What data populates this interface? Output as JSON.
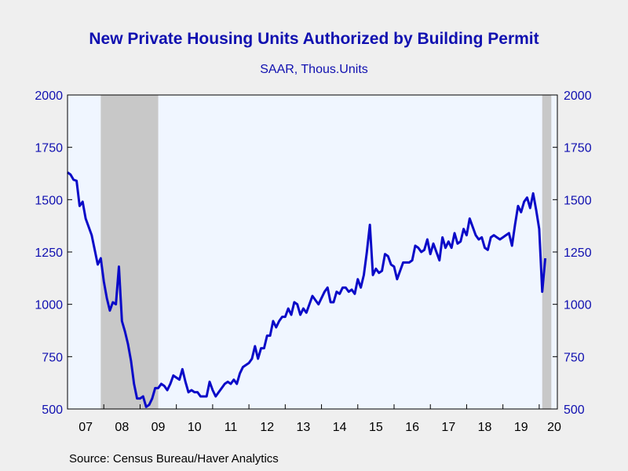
{
  "chart_data": {
    "type": "line",
    "title": "New Private Housing Units Authorized by Building Permit",
    "subtitle": "SAAR, Thous.Units",
    "source": "Source:  Census Bureau/Haver Analytics",
    "ylim": [
      500,
      2000
    ],
    "yticks": [
      500,
      750,
      1000,
      1250,
      1500,
      1750,
      2000
    ],
    "xlim": [
      2007.0,
      2020.5
    ],
    "xticks": [
      {
        "label": "07",
        "year": 2007
      },
      {
        "label": "08",
        "year": 2008
      },
      {
        "label": "09",
        "year": 2009
      },
      {
        "label": "10",
        "year": 2010
      },
      {
        "label": "11",
        "year": 2011
      },
      {
        "label": "12",
        "year": 2012
      },
      {
        "label": "13",
        "year": 2013
      },
      {
        "label": "14",
        "year": 2014
      },
      {
        "label": "15",
        "year": 2015
      },
      {
        "label": "16",
        "year": 2016
      },
      {
        "label": "17",
        "year": 2017
      },
      {
        "label": "18",
        "year": 2018
      },
      {
        "label": "19",
        "year": 2019
      },
      {
        "label": "20",
        "year": 2020
      }
    ],
    "recessions": [
      {
        "start": "2007-12",
        "end": "2009-06"
      },
      {
        "start": "2020-02",
        "end": "2020-04"
      }
    ],
    "grid": false,
    "colors": {
      "line": "#0a0ac8",
      "plot_bg": "#f0f6ff",
      "recession": "#c8c8c8",
      "axis_text": "#1010b0",
      "title": "#1010b0"
    },
    "series": [
      {
        "start": "2007-01",
        "frequency": "monthly",
        "values": [
          1630,
          1620,
          1595,
          1590,
          1470,
          1490,
          1410,
          1370,
          1330,
          1260,
          1190,
          1220,
          1110,
          1030,
          970,
          1010,
          1000,
          1180,
          920,
          870,
          810,
          730,
          620,
          550,
          550,
          560,
          510,
          520,
          550,
          600,
          600,
          620,
          610,
          590,
          620,
          660,
          650,
          640,
          690,
          630,
          580,
          590,
          580,
          580,
          560,
          560,
          560,
          630,
          590,
          560,
          580,
          600,
          620,
          630,
          620,
          640,
          620,
          670,
          700,
          710,
          720,
          740,
          800,
          740,
          790,
          790,
          850,
          850,
          920,
          890,
          920,
          940,
          940,
          980,
          950,
          1010,
          1000,
          950,
          980,
          960,
          1000,
          1040,
          1020,
          1000,
          1030,
          1060,
          1080,
          1010,
          1010,
          1060,
          1050,
          1080,
          1080,
          1060,
          1070,
          1050,
          1120,
          1080,
          1140,
          1250,
          1380,
          1140,
          1170,
          1150,
          1160,
          1240,
          1230,
          1190,
          1180,
          1120,
          1160,
          1200,
          1200,
          1200,
          1210,
          1280,
          1270,
          1250,
          1260,
          1310,
          1240,
          1290,
          1250,
          1210,
          1320,
          1270,
          1300,
          1270,
          1340,
          1290,
          1300,
          1360,
          1330,
          1410,
          1370,
          1330,
          1310,
          1320,
          1270,
          1260,
          1320,
          1330,
          1320,
          1310,
          1320,
          1330,
          1340,
          1280,
          1380,
          1470,
          1440,
          1490,
          1510,
          1460,
          1530,
          1450,
          1360,
          1060,
          1220
        ]
      }
    ]
  }
}
